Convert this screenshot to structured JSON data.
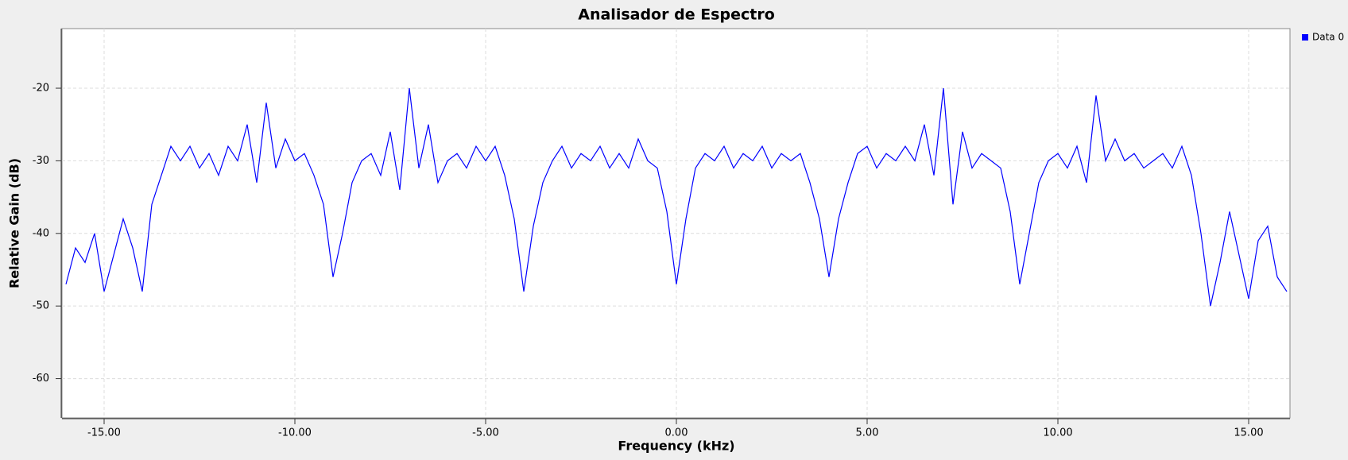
{
  "chart_data": {
    "type": "line",
    "title": "Analisador de Espectro",
    "xlabel": "Frequency (kHz)",
    "ylabel": "Relative Gain (dB)",
    "xlim": [
      -16,
      16
    ],
    "ylim": [
      -65.3,
      -11.9
    ],
    "xticks": [
      {
        "value": -15,
        "label": "-15.00"
      },
      {
        "value": -10,
        "label": "-10.00"
      },
      {
        "value": -5,
        "label": "-5.00"
      },
      {
        "value": 0,
        "label": "0.00"
      },
      {
        "value": 5,
        "label": "5.00"
      },
      {
        "value": 10,
        "label": "10.00"
      },
      {
        "value": 15,
        "label": "15.00"
      }
    ],
    "yticks": [
      -60,
      -50,
      -40,
      -30,
      -20
    ],
    "grid": true,
    "legend": "top-right",
    "x": [
      -16,
      -15.75,
      -15.5,
      -15.25,
      -15,
      -14.75,
      -14.5,
      -14.25,
      -14,
      -13.75,
      -13.5,
      -13.25,
      -13,
      -12.75,
      -12.5,
      -12.25,
      -12,
      -11.75,
      -11.5,
      -11.25,
      -11,
      -10.75,
      -10.5,
      -10.25,
      -10,
      -9.75,
      -9.5,
      -9.25,
      -9,
      -8.75,
      -8.5,
      -8.25,
      -8,
      -7.75,
      -7.5,
      -7.25,
      -7,
      -6.75,
      -6.5,
      -6.25,
      -6,
      -5.75,
      -5.5,
      -5.25,
      -5,
      -4.75,
      -4.5,
      -4.25,
      -4,
      -3.75,
      -3.5,
      -3.25,
      -3,
      -2.75,
      -2.5,
      -2.25,
      -2,
      -1.75,
      -1.5,
      -1.25,
      -1,
      -0.75,
      -0.5,
      -0.25,
      0,
      0.25,
      0.5,
      0.75,
      1,
      1.25,
      1.5,
      1.75,
      2,
      2.25,
      2.5,
      2.75,
      3,
      3.25,
      3.5,
      3.75,
      4,
      4.25,
      4.5,
      4.75,
      5,
      5.25,
      5.5,
      5.75,
      6,
      6.25,
      6.5,
      6.75,
      7,
      7.25,
      7.5,
      7.75,
      8,
      8.25,
      8.5,
      8.75,
      9,
      9.25,
      9.5,
      9.75,
      10,
      10.25,
      10.5,
      10.75,
      11,
      11.25,
      11.5,
      11.75,
      12,
      12.25,
      12.5,
      12.75,
      13,
      13.25,
      13.5,
      13.75,
      14,
      14.25,
      14.5,
      14.75,
      15,
      15.25,
      15.5,
      15.75,
      16
    ],
    "series": [
      {
        "name": "Data 0",
        "color": "#0000ff",
        "values": [
          -47,
          -42,
          -44,
          -40,
          -48,
          -43,
          -38,
          -42,
          -48,
          -36,
          -32,
          -28,
          -30,
          -28,
          -31,
          -29,
          -32,
          -28,
          -30,
          -25,
          -33,
          -22,
          -31,
          -27,
          -30,
          -29,
          -32,
          -36,
          -46,
          -40,
          -33,
          -30,
          -29,
          -32,
          -26,
          -34,
          -20,
          -31,
          -25,
          -33,
          -30,
          -29,
          -31,
          -28,
          -30,
          -28,
          -32,
          -38,
          -48,
          -39,
          -33,
          -30,
          -28,
          -31,
          -29,
          -30,
          -28,
          -31,
          -29,
          -31,
          -27,
          -30,
          -31,
          -37,
          -47,
          -38,
          -31,
          -29,
          -30,
          -28,
          -31,
          -29,
          -30,
          -28,
          -31,
          -29,
          -30,
          -29,
          -33,
          -38,
          -46,
          -38,
          -33,
          -29,
          -28,
          -31,
          -29,
          -30,
          -28,
          -30,
          -25,
          -32,
          -20,
          -36,
          -26,
          -31,
          -29,
          -30,
          -31,
          -37,
          -47,
          -40,
          -33,
          -30,
          -29,
          -31,
          -28,
          -33,
          -21,
          -30,
          -27,
          -30,
          -29,
          -31,
          -30,
          -29,
          -31,
          -28,
          -32,
          -40,
          -50,
          -44,
          -37,
          -43,
          -49,
          -41,
          -39,
          -46,
          -48
        ]
      }
    ]
  }
}
